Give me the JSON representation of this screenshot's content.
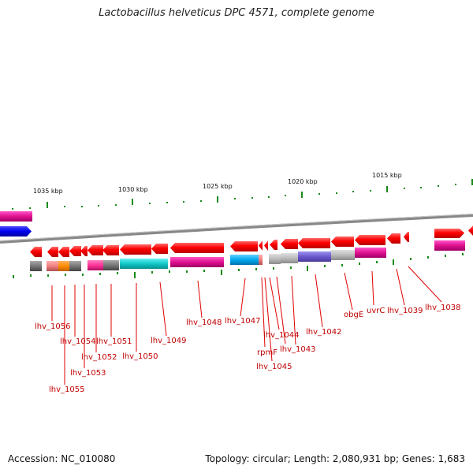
{
  "title": "Lactobacillus helveticus DPC 4571, complete genome",
  "footer": {
    "accession": "Accession: NC_010080",
    "info": "Topology: circular; Length: 2,080,931 bp; Genes: 1,683"
  },
  "scale_labels": [
    "1035 kbp",
    "1030 kbp",
    "1025 kbp",
    "1020 kbp",
    "1015 kbp"
  ],
  "gene_labels": [
    "lhv_1056",
    "lhv_1055",
    "lhv_1054",
    "lhv_1053",
    "lhv_1052",
    "lhv_1051",
    "lhv_1050",
    "lhv_1049",
    "lhv_1048",
    "lhv_1047",
    "rpmF",
    "lhv_1045",
    "lhv_1044",
    "lhv_1043",
    "lhv_1042",
    "obgE",
    "uvrC",
    "lhv_1039",
    "lhv_1038"
  ],
  "colors": {
    "gene_arrow": "#ff0000",
    "backbone": "#888888",
    "tick": "#1a8a1a",
    "label": "#c00000"
  }
}
